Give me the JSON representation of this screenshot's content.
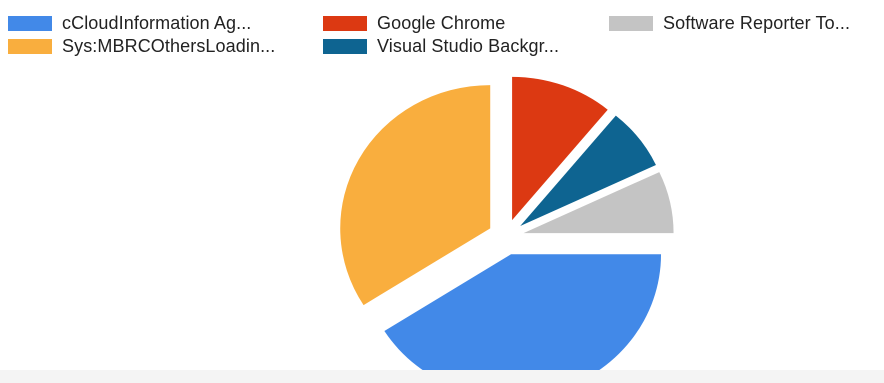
{
  "chart_data": {
    "type": "pie",
    "title": "",
    "legend_position": "top",
    "slices": [
      {
        "label": "cCloudInformation Ag...",
        "value": 41,
        "color": "#4289E8"
      },
      {
        "label": "Google Chrome",
        "value": 11,
        "color": "#DC3912"
      },
      {
        "label": "Software Reporter To...",
        "value": 7,
        "color": "#C4C4C4"
      },
      {
        "label": "Sys:MBRCOthersLoadin...",
        "value": 34,
        "color": "#F9AE3E"
      },
      {
        "label": "Visual Studio Backgr...",
        "value": 7,
        "color": "#0E6491"
      }
    ],
    "pie_draw_order": [
      "cCloudInformation Ag...",
      "Sys:MBRCOthersLoadin...",
      "Google Chrome",
      "Visual Studio Backgr...",
      "Software Reporter To..."
    ],
    "exploded": true
  }
}
